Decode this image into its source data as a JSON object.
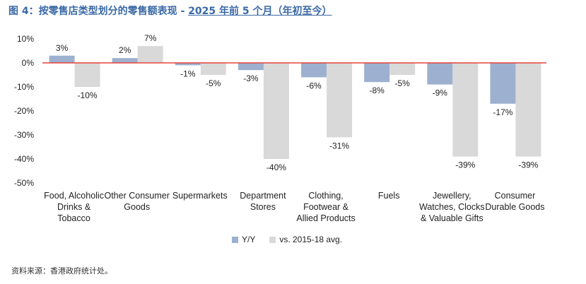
{
  "title_prefix": "图 4：按零售店类型划分的零售额表现 - ",
  "title_period": "2025 年前 5 个月（年初至今）",
  "source": "资料来源：香港政府统计处。",
  "colors": {
    "yy": "#9db0cf",
    "vs": "#d9d9d9",
    "zero_line": "#e8423a"
  },
  "chart_data": {
    "type": "bar",
    "categories": [
      [
        "Food, Alcoholic",
        "Drinks &",
        "Tobacco"
      ],
      [
        "Other Consumer",
        "Goods"
      ],
      [
        "Supermarkets"
      ],
      [
        "Department",
        "Stores"
      ],
      [
        "Clothing,",
        "Footwear &",
        "Allied Products"
      ],
      [
        "Fuels"
      ],
      [
        "Jewellery,",
        "Watches, Clocks",
        "& Valuable Gifts"
      ],
      [
        "Consumer",
        "Durable Goods"
      ]
    ],
    "series": [
      {
        "name": "Y/Y",
        "values": [
          3,
          2,
          -1,
          -3,
          -6,
          -8,
          -9,
          -17
        ]
      },
      {
        "name": "vs. 2015-18 avg.",
        "values": [
          -10,
          7,
          -5,
          -40,
          -31,
          -5,
          -39,
          -39
        ]
      }
    ],
    "yticks": [
      "10%",
      "0%",
      "-10%",
      "-20%",
      "-30%",
      "-40%",
      "-50%"
    ],
    "ylim": [
      -50,
      10
    ],
    "legend_position": "bottom",
    "grid": false
  }
}
